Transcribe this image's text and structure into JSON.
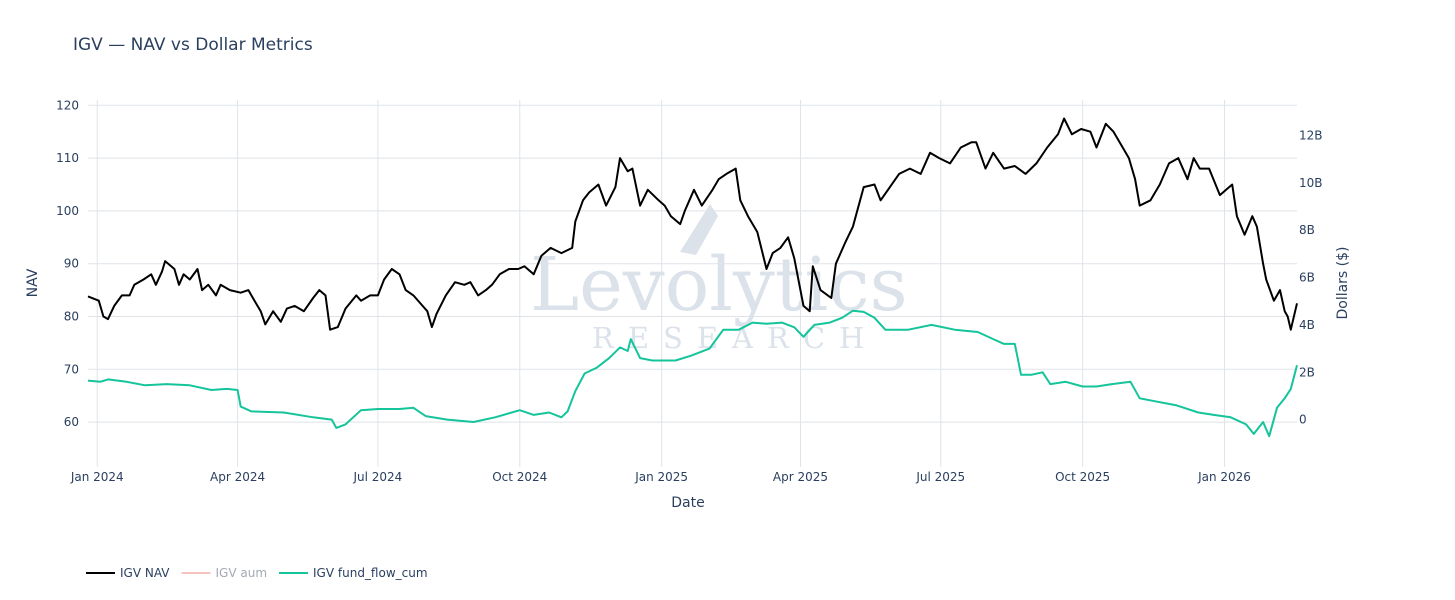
{
  "watermark": {
    "name": "Levolytics",
    "sub": "RESEARCH"
  },
  "chart_data": {
    "type": "line",
    "title": "IGV — NAV vs Dollar Metrics",
    "xlabel": "Date",
    "ylabel": "NAV",
    "y2label": "Dollars ($)",
    "xlim": [
      "2023-12-26",
      "2026-02-17"
    ],
    "ylim": [
      51.5,
      121
    ],
    "y2lim": [
      -2.0,
      13.5
    ],
    "x_ticks": [
      {
        "date": "2024-01-01",
        "label": "Jan 2024"
      },
      {
        "date": "2024-04-01",
        "label": "Apr 2024"
      },
      {
        "date": "2024-07-01",
        "label": "Jul 2024"
      },
      {
        "date": "2024-10-01",
        "label": "Oct 2024"
      },
      {
        "date": "2025-01-01",
        "label": "Jan 2025"
      },
      {
        "date": "2025-04-01",
        "label": "Apr 2025"
      },
      {
        "date": "2025-07-01",
        "label": "Jul 2025"
      },
      {
        "date": "2025-10-01",
        "label": "Oct 2025"
      },
      {
        "date": "2026-01-01",
        "label": "Jan 2026"
      }
    ],
    "y_ticks": [
      {
        "value": 60,
        "label": "60"
      },
      {
        "value": 70,
        "label": "70"
      },
      {
        "value": 80,
        "label": "80"
      },
      {
        "value": 90,
        "label": "90"
      },
      {
        "value": 100,
        "label": "100"
      },
      {
        "value": 110,
        "label": "110"
      },
      {
        "value": 120,
        "label": "120"
      }
    ],
    "y2_ticks": [
      {
        "value": 0,
        "label": "0"
      },
      {
        "value": 2,
        "label": "2B"
      },
      {
        "value": 4,
        "label": "4B"
      },
      {
        "value": 6,
        "label": "6B"
      },
      {
        "value": 8,
        "label": "8B"
      },
      {
        "value": 10,
        "label": "10B"
      },
      {
        "value": 12,
        "label": "12B"
      }
    ],
    "grid": true,
    "legend_position": "bottom-left",
    "series": [
      {
        "name": "IGV NAV",
        "axis": "y",
        "color": "#000000",
        "visible": true,
        "points": [
          [
            "2023-12-26",
            83.8
          ],
          [
            "2024-01-02",
            83.0
          ],
          [
            "2024-01-05",
            80.0
          ],
          [
            "2024-01-08",
            79.5
          ],
          [
            "2024-01-12",
            82.0
          ],
          [
            "2024-01-17",
            84.0
          ],
          [
            "2024-01-22",
            84.0
          ],
          [
            "2024-01-25",
            86.0
          ],
          [
            "2024-01-31",
            87.0
          ],
          [
            "2024-02-05",
            88.0
          ],
          [
            "2024-02-08",
            86.0
          ],
          [
            "2024-02-12",
            88.5
          ],
          [
            "2024-02-14",
            90.5
          ],
          [
            "2024-02-20",
            89.0
          ],
          [
            "2024-02-23",
            86.0
          ],
          [
            "2024-02-26",
            88.0
          ],
          [
            "2024-03-01",
            87.0
          ],
          [
            "2024-03-06",
            89.0
          ],
          [
            "2024-03-09",
            85.0
          ],
          [
            "2024-03-13",
            86.0
          ],
          [
            "2024-03-18",
            84.0
          ],
          [
            "2024-03-21",
            86.0
          ],
          [
            "2024-03-27",
            85.0
          ],
          [
            "2024-04-03",
            84.5
          ],
          [
            "2024-04-08",
            85.0
          ],
          [
            "2024-04-12",
            83.0
          ],
          [
            "2024-04-16",
            81.0
          ],
          [
            "2024-04-19",
            78.5
          ],
          [
            "2024-04-24",
            81.0
          ],
          [
            "2024-04-29",
            79.0
          ],
          [
            "2024-05-03",
            81.5
          ],
          [
            "2024-05-08",
            82.0
          ],
          [
            "2024-05-14",
            81.0
          ],
          [
            "2024-05-20",
            83.5
          ],
          [
            "2024-05-24",
            85.0
          ],
          [
            "2024-05-28",
            84.0
          ],
          [
            "2024-05-31",
            77.5
          ],
          [
            "2024-06-05",
            78.0
          ],
          [
            "2024-06-10",
            81.5
          ],
          [
            "2024-06-17",
            84.0
          ],
          [
            "2024-06-20",
            83.0
          ],
          [
            "2024-06-26",
            84.0
          ],
          [
            "2024-07-01",
            84.0
          ],
          [
            "2024-07-05",
            87.0
          ],
          [
            "2024-07-10",
            89.0
          ],
          [
            "2024-07-15",
            88.0
          ],
          [
            "2024-07-19",
            85.0
          ],
          [
            "2024-07-24",
            84.0
          ],
          [
            "2024-07-30",
            82.0
          ],
          [
            "2024-08-02",
            81.0
          ],
          [
            "2024-08-05",
            78.0
          ],
          [
            "2024-08-08",
            80.5
          ],
          [
            "2024-08-14",
            84.0
          ],
          [
            "2024-08-20",
            86.5
          ],
          [
            "2024-08-26",
            86.0
          ],
          [
            "2024-08-30",
            86.5
          ],
          [
            "2024-09-04",
            84.0
          ],
          [
            "2024-09-09",
            85.0
          ],
          [
            "2024-09-13",
            86.0
          ],
          [
            "2024-09-18",
            88.0
          ],
          [
            "2024-09-24",
            89.0
          ],
          [
            "2024-09-30",
            89.0
          ],
          [
            "2024-10-04",
            89.5
          ],
          [
            "2024-10-10",
            88.0
          ],
          [
            "2024-10-15",
            91.5
          ],
          [
            "2024-10-21",
            93.0
          ],
          [
            "2024-10-28",
            92.0
          ],
          [
            "2024-11-04",
            93.0
          ],
          [
            "2024-11-06",
            98.0
          ],
          [
            "2024-11-11",
            102.0
          ],
          [
            "2024-11-15",
            103.5
          ],
          [
            "2024-11-21",
            105.0
          ],
          [
            "2024-11-26",
            101.0
          ],
          [
            "2024-12-02",
            104.5
          ],
          [
            "2024-12-05",
            110.0
          ],
          [
            "2024-12-10",
            107.5
          ],
          [
            "2024-12-13",
            108.0
          ],
          [
            "2024-12-18",
            101.0
          ],
          [
            "2024-12-23",
            104.0
          ],
          [
            "2024-12-30",
            102.0
          ],
          [
            "2025-01-03",
            101.0
          ],
          [
            "2025-01-07",
            99.0
          ],
          [
            "2025-01-13",
            97.5
          ],
          [
            "2025-01-16",
            100.0
          ],
          [
            "2025-01-22",
            104.0
          ],
          [
            "2025-01-27",
            101.0
          ],
          [
            "2025-02-03",
            104.0
          ],
          [
            "2025-02-07",
            106.0
          ],
          [
            "2025-02-12",
            107.0
          ],
          [
            "2025-02-18",
            108.0
          ],
          [
            "2025-02-21",
            102.0
          ],
          [
            "2025-02-26",
            99.0
          ],
          [
            "2025-03-04",
            96.0
          ],
          [
            "2025-03-10",
            89.0
          ],
          [
            "2025-03-14",
            92.0
          ],
          [
            "2025-03-19",
            93.0
          ],
          [
            "2025-03-24",
            95.0
          ],
          [
            "2025-03-28",
            91.0
          ],
          [
            "2025-04-03",
            82.0
          ],
          [
            "2025-04-07",
            81.0
          ],
          [
            "2025-04-09",
            89.5
          ],
          [
            "2025-04-14",
            85.0
          ],
          [
            "2025-04-21",
            83.5
          ],
          [
            "2025-04-24",
            90.0
          ],
          [
            "2025-04-30",
            94.0
          ],
          [
            "2025-05-05",
            97.0
          ],
          [
            "2025-05-12",
            104.5
          ],
          [
            "2025-05-19",
            105.0
          ],
          [
            "2025-05-23",
            102.0
          ],
          [
            "2025-05-29",
            104.5
          ],
          [
            "2025-06-04",
            107.0
          ],
          [
            "2025-06-11",
            108.0
          ],
          [
            "2025-06-18",
            107.0
          ],
          [
            "2025-06-24",
            111.0
          ],
          [
            "2025-06-30",
            110.0
          ],
          [
            "2025-07-07",
            109.0
          ],
          [
            "2025-07-14",
            112.0
          ],
          [
            "2025-07-21",
            113.0
          ],
          [
            "2025-07-24",
            113.0
          ],
          [
            "2025-07-30",
            108.0
          ],
          [
            "2025-08-04",
            111.0
          ],
          [
            "2025-08-11",
            108.0
          ],
          [
            "2025-08-18",
            108.5
          ],
          [
            "2025-08-25",
            107.0
          ],
          [
            "2025-09-01",
            109.0
          ],
          [
            "2025-09-08",
            112.0
          ],
          [
            "2025-09-15",
            114.5
          ],
          [
            "2025-09-19",
            117.5
          ],
          [
            "2025-09-24",
            114.5
          ],
          [
            "2025-09-30",
            115.5
          ],
          [
            "2025-10-06",
            115.0
          ],
          [
            "2025-10-10",
            112.0
          ],
          [
            "2025-10-16",
            116.5
          ],
          [
            "2025-10-21",
            115.0
          ],
          [
            "2025-10-27",
            112.0
          ],
          [
            "2025-10-31",
            110.0
          ],
          [
            "2025-11-04",
            106.0
          ],
          [
            "2025-11-07",
            101.0
          ],
          [
            "2025-11-14",
            102.0
          ],
          [
            "2025-11-20",
            105.0
          ],
          [
            "2025-11-26",
            109.0
          ],
          [
            "2025-12-02",
            110.0
          ],
          [
            "2025-12-08",
            106.0
          ],
          [
            "2025-12-12",
            110.0
          ],
          [
            "2025-12-16",
            108.0
          ],
          [
            "2025-12-22",
            108.0
          ],
          [
            "2025-12-29",
            103.0
          ],
          [
            "2026-01-02",
            104.0
          ],
          [
            "2026-01-06",
            105.0
          ],
          [
            "2026-01-09",
            99.0
          ],
          [
            "2026-01-14",
            95.5
          ],
          [
            "2026-01-19",
            99.0
          ],
          [
            "2026-01-22",
            97.0
          ],
          [
            "2026-01-26",
            90.0
          ],
          [
            "2026-01-28",
            87.0
          ],
          [
            "2026-02-02",
            83.0
          ],
          [
            "2026-02-06",
            85.0
          ],
          [
            "2026-02-09",
            81.0
          ],
          [
            "2026-02-11",
            80.0
          ],
          [
            "2026-02-13",
            77.5
          ],
          [
            "2026-02-17",
            82.5
          ]
        ]
      },
      {
        "name": "IGV aum",
        "axis": "y2",
        "color": "#f4a9a1",
        "visible": false,
        "points": []
      },
      {
        "name": "IGV fund_flow_cum",
        "axis": "y2",
        "color": "#14c49a",
        "visible": true,
        "points": [
          [
            "2023-12-26",
            1.65
          ],
          [
            "2024-01-03",
            1.6
          ],
          [
            "2024-01-08",
            1.7
          ],
          [
            "2024-01-20",
            1.6
          ],
          [
            "2024-02-01",
            1.45
          ],
          [
            "2024-02-15",
            1.5
          ],
          [
            "2024-03-01",
            1.45
          ],
          [
            "2024-03-15",
            1.25
          ],
          [
            "2024-03-25",
            1.3
          ],
          [
            "2024-04-01",
            1.25
          ],
          [
            "2024-04-03",
            0.55
          ],
          [
            "2024-04-10",
            0.35
          ],
          [
            "2024-05-01",
            0.3
          ],
          [
            "2024-05-20",
            0.1
          ],
          [
            "2024-06-01",
            0.0
          ],
          [
            "2024-06-04",
            -0.35
          ],
          [
            "2024-06-10",
            -0.2
          ],
          [
            "2024-06-20",
            0.4
          ],
          [
            "2024-07-01",
            0.45
          ],
          [
            "2024-07-15",
            0.45
          ],
          [
            "2024-07-24",
            0.5
          ],
          [
            "2024-08-01",
            0.15
          ],
          [
            "2024-08-15",
            0.0
          ],
          [
            "2024-09-01",
            -0.1
          ],
          [
            "2024-09-15",
            0.1
          ],
          [
            "2024-10-01",
            0.4
          ],
          [
            "2024-10-10",
            0.2
          ],
          [
            "2024-10-20",
            0.3
          ],
          [
            "2024-10-28",
            0.1
          ],
          [
            "2024-11-01",
            0.35
          ],
          [
            "2024-11-06",
            1.2
          ],
          [
            "2024-11-12",
            1.95
          ],
          [
            "2024-11-20",
            2.2
          ],
          [
            "2024-11-28",
            2.6
          ],
          [
            "2024-12-05",
            3.05
          ],
          [
            "2024-12-10",
            2.9
          ],
          [
            "2024-12-12",
            3.4
          ],
          [
            "2024-12-18",
            2.6
          ],
          [
            "2024-12-26",
            2.5
          ],
          [
            "2025-01-10",
            2.5
          ],
          [
            "2025-01-20",
            2.7
          ],
          [
            "2025-02-01",
            3.0
          ],
          [
            "2025-02-10",
            3.8
          ],
          [
            "2025-02-20",
            3.8
          ],
          [
            "2025-03-01",
            4.1
          ],
          [
            "2025-03-10",
            4.05
          ],
          [
            "2025-03-20",
            4.1
          ],
          [
            "2025-03-28",
            3.9
          ],
          [
            "2025-04-03",
            3.5
          ],
          [
            "2025-04-10",
            4.0
          ],
          [
            "2025-04-20",
            4.1
          ],
          [
            "2025-04-28",
            4.3
          ],
          [
            "2025-05-05",
            4.6
          ],
          [
            "2025-05-12",
            4.55
          ],
          [
            "2025-05-19",
            4.3
          ],
          [
            "2025-05-26",
            3.8
          ],
          [
            "2025-06-10",
            3.8
          ],
          [
            "2025-06-25",
            4.0
          ],
          [
            "2025-07-10",
            3.8
          ],
          [
            "2025-07-25",
            3.7
          ],
          [
            "2025-08-04",
            3.4
          ],
          [
            "2025-08-11",
            3.2
          ],
          [
            "2025-08-18",
            3.2
          ],
          [
            "2025-08-22",
            1.9
          ],
          [
            "2025-08-29",
            1.9
          ],
          [
            "2025-09-05",
            2.0
          ],
          [
            "2025-09-10",
            1.5
          ],
          [
            "2025-09-20",
            1.6
          ],
          [
            "2025-10-01",
            1.4
          ],
          [
            "2025-10-10",
            1.4
          ],
          [
            "2025-10-20",
            1.5
          ],
          [
            "2025-11-01",
            1.6
          ],
          [
            "2025-11-07",
            0.9
          ],
          [
            "2025-11-15",
            0.8
          ],
          [
            "2025-12-01",
            0.6
          ],
          [
            "2025-12-15",
            0.3
          ],
          [
            "2025-12-25",
            0.2
          ],
          [
            "2026-01-05",
            0.1
          ],
          [
            "2026-01-15",
            -0.2
          ],
          [
            "2026-01-20",
            -0.6
          ],
          [
            "2026-01-26",
            -0.1
          ],
          [
            "2026-01-30",
            -0.7
          ],
          [
            "2026-02-04",
            0.5
          ],
          [
            "2026-02-09",
            0.9
          ],
          [
            "2026-02-13",
            1.3
          ],
          [
            "2026-02-17",
            2.3
          ]
        ]
      }
    ]
  }
}
